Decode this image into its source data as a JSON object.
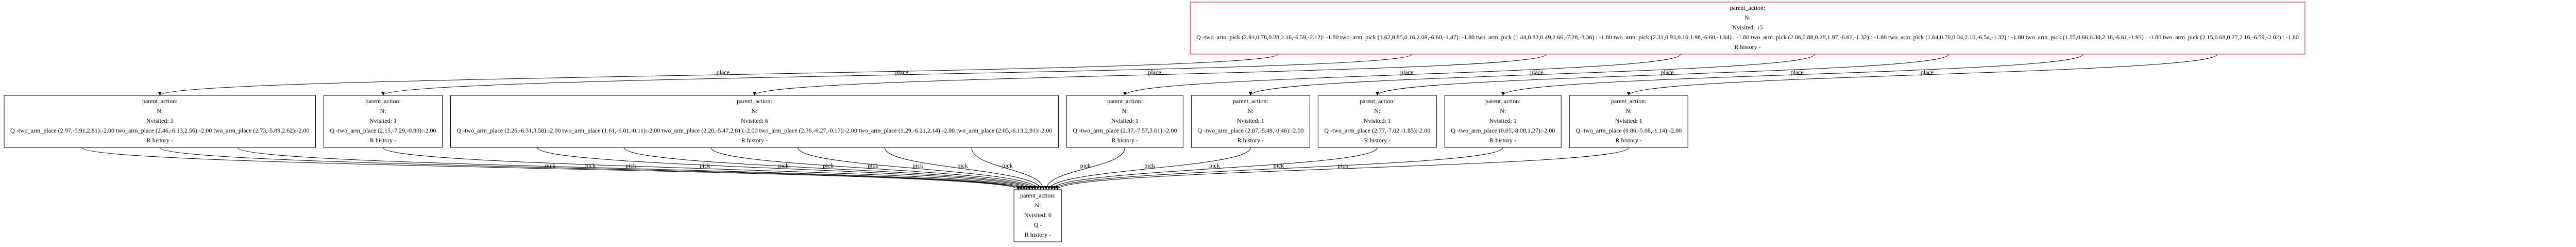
{
  "root": {
    "lines": [
      "parent_action:",
      "N:",
      "Nvisited: 15",
      "Q -two_arm_pick (2.91,0.78,0.28,2.16,-6.59,-2.12): -1.80 two_arm_pick (1.62,0.85,0.16,2.09,-6.60,-1.47): -1.80 two_arm_pick (1.44,0.82,0.49,2.66,-7.28,-3.36) : -1.80 two_arm_pick (2.31,0.93,0.16,1.98,-6.60,-1.64) : -1.80 two_arm_pick (2.06,0.88,0.28,1.97,-6.61,-1.32) : -1.80 two_arm_pick (1.64,0.70,0.34,2.10,-6.54,-1.32) : -1.80 two_arm_pick (1.55,0.66,0.30,2.16,-6.61,-1.93) : -1.80 two_arm_pick (2.15,0.68,0.27,2.16,-6.59,-2.02) : -1.80",
      "R history -"
    ]
  },
  "children": [
    {
      "edge_label": "place",
      "lines": [
        "parent_action:",
        "N:",
        "Nvisited: 3",
        "Q -two_arm_place (2.97,-5.91,2.81):-2.00 two_arm_place (2.46,-6.13,2.56):-2.00 two_arm_place (2.73,-5.89,2.62):-2.00",
        "R history -"
      ],
      "edges": [
        "pick",
        "pick",
        "pick"
      ]
    },
    {
      "edge_label": "place",
      "lines": [
        "parent_action:",
        "N:",
        "Nvisited: 1",
        "Q -two_arm_place (2.15,-7.29,-0.90):-2.00",
        "R history -"
      ],
      "edges": [
        "pick"
      ]
    },
    {
      "edge_label": "place",
      "lines": [
        "parent_action:",
        "N:",
        "Nvisited: 6",
        "Q -two_arm_place (2.26,-6.31,3.58):-2.00 two_arm_place (1.61,-6.01,-0.11):-2.00 two_arm_place (2.20,-5.47,2.81):-2.00 two_arm_place (2.36,-6.27,-0.17):-2.00 two_arm_place (1.29,-6.21,2.14):-2.00 two_arm_place (2.03,-6.13,2.91):-2.00",
        "R history -"
      ],
      "edges": [
        "pick",
        "pick",
        "pick",
        "pick",
        "pick",
        "pick"
      ]
    },
    {
      "edge_label": "place",
      "lines": [
        "parent_action:",
        "N:",
        "Nvisited: 1",
        "Q -two_arm_place (2.37,-7.57,3.61):-2.00",
        "R history -"
      ],
      "edges": [
        "pick"
      ]
    },
    {
      "edge_label": "place",
      "lines": [
        "parent_action:",
        "N:",
        "Nvisited: 1",
        "Q -two_arm_place (2.87,-5.49,-0.46):-2.00",
        "R history -"
      ],
      "edges": [
        "pick"
      ]
    },
    {
      "edge_label": "place",
      "lines": [
        "parent_action:",
        "N:",
        "Nvisited: 1",
        "Q -two_arm_place (2.77,-7.02,-1.85):-2.00",
        "R history -"
      ],
      "edges": [
        "pick"
      ]
    },
    {
      "edge_label": "place",
      "lines": [
        "parent_action:",
        "N:",
        "Nvisited: 1",
        "Q -two_arm_place (0.05,-8.08,1.27):-2.00",
        "R history -"
      ],
      "edges": [
        "pick"
      ]
    },
    {
      "edge_label": "place",
      "lines": [
        "parent_action:",
        "N:",
        "Nvisited: 1",
        "Q -two_arm_place (0.86,-5.08,-1.14):-2.00",
        "R history -"
      ],
      "edges": [
        "pick"
      ]
    }
  ],
  "leaf": {
    "lines": [
      "parent_action:",
      "N:",
      "Nvisited: 0",
      "Q -",
      "R history -"
    ]
  }
}
